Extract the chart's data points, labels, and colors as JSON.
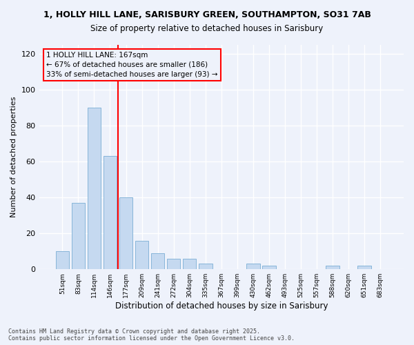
{
  "title_line1": "1, HOLLY HILL LANE, SARISBURY GREEN, SOUTHAMPTON, SO31 7AB",
  "title_line2": "Size of property relative to detached houses in Sarisbury",
  "xlabel": "Distribution of detached houses by size in Sarisbury",
  "ylabel": "Number of detached properties",
  "categories": [
    "51sqm",
    "83sqm",
    "114sqm",
    "146sqm",
    "177sqm",
    "209sqm",
    "241sqm",
    "272sqm",
    "304sqm",
    "335sqm",
    "367sqm",
    "399sqm",
    "430sqm",
    "462sqm",
    "493sqm",
    "525sqm",
    "557sqm",
    "588sqm",
    "620sqm",
    "651sqm",
    "683sqm"
  ],
  "values": [
    10,
    37,
    90,
    63,
    40,
    16,
    9,
    6,
    6,
    3,
    0,
    0,
    3,
    2,
    0,
    0,
    0,
    2,
    0,
    2,
    0
  ],
  "bar_color": "#c5d9f0",
  "bar_edge_color": "#7aadd4",
  "vline_color": "red",
  "annotation_text": "1 HOLLY HILL LANE: 167sqm\n← 67% of detached houses are smaller (186)\n33% of semi-detached houses are larger (93) →",
  "annotation_box_color": "red",
  "ylim": [
    0,
    125
  ],
  "yticks": [
    0,
    20,
    40,
    60,
    80,
    100,
    120
  ],
  "footnote": "Contains HM Land Registry data © Crown copyright and database right 2025.\nContains public sector information licensed under the Open Government Licence v3.0.",
  "bg_color": "#eef2fb",
  "grid_color": "#ffffff"
}
